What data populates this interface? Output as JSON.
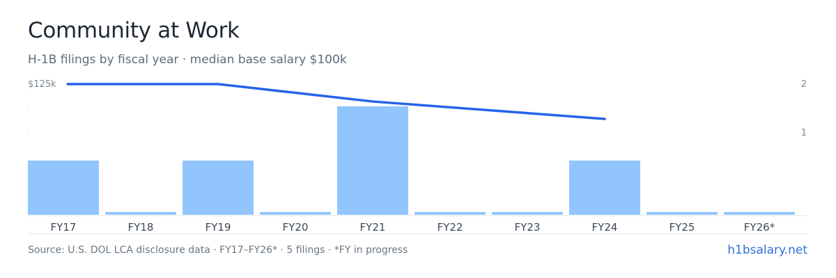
{
  "header": {
    "title": "Community at Work",
    "subtitle": "H-1B filings by fiscal year · median base salary $100k"
  },
  "chart_data": {
    "type": "bar",
    "categories": [
      "FY17",
      "FY18",
      "FY19",
      "FY20",
      "FY21",
      "FY22",
      "FY23",
      "FY24",
      "FY25",
      "FY26*"
    ],
    "series": [
      {
        "kind": "bar",
        "values": [
          1,
          0,
          1,
          0,
          2,
          0,
          0,
          1,
          0,
          0
        ],
        "color": "#93c5fd"
      },
      {
        "kind": "line",
        "values": [
          125,
          125,
          125,
          122,
          119,
          117,
          115,
          113,
          null,
          null
        ],
        "color": "#2563eb"
      }
    ],
    "left_axis": {
      "ticks": [
        {
          "value": 125,
          "label": "$125k"
        }
      ],
      "range": [
        80,
        125
      ]
    },
    "right_axis": {
      "ticks": [
        {
          "value": 2,
          "label": "2"
        },
        {
          "value": 1,
          "label": "1"
        }
      ],
      "range": [
        0,
        2
      ]
    }
  },
  "footer": {
    "source": "Source: U.S. DOL LCA disclosure data · FY17–FY26* · 5 filings · *FY in progress",
    "brand": "h1bsalary.net"
  }
}
